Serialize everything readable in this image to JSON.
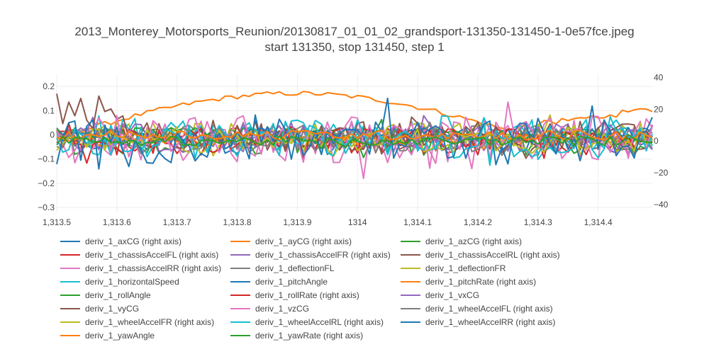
{
  "chart_data": {
    "type": "line",
    "title": "2013_Monterey_Motorsports_Reunion/20130817_01_01_02_grandsport-131350-131450-1-0e57fce.jpeg",
    "subtitle": "start 131350, stop 131450, step 1",
    "xlabel": "",
    "ylabel": "",
    "xlim": [
      1313.5,
      1314.49
    ],
    "ylim_left": [
      -0.32,
      0.25
    ],
    "ylim_right": [
      -45,
      42
    ],
    "x_ticks": [
      "1,313.5",
      "1,313.6",
      "1,313.7",
      "1,313.8",
      "1,313.9",
      "1314",
      "1,314.1",
      "1,314.2",
      "1,314.3",
      "1,314.4"
    ],
    "x_tick_values": [
      1313.5,
      1313.6,
      1313.7,
      1313.8,
      1313.9,
      1314.0,
      1314.1,
      1314.2,
      1314.3,
      1314.4
    ],
    "y_ticks_left": [
      "0.2",
      "0.1",
      "0",
      "−0.1",
      "−0.2",
      "−0.3"
    ],
    "y_tick_values_left": [
      0.2,
      0.1,
      0,
      -0.1,
      -0.2,
      -0.3
    ],
    "y_ticks_right": [
      "40",
      "20",
      "0",
      "−20",
      "−40"
    ],
    "y_tick_values_right": [
      40,
      20,
      0,
      -20,
      -40
    ],
    "grid": true,
    "legend_position": "bottom",
    "series": [
      {
        "name": "deriv_1_axCG (right axis)",
        "color": "#1f77b4",
        "axis": "right",
        "amp": 8
      },
      {
        "name": "deriv_1_ayCG (right axis)",
        "color": "#ff7f0e",
        "axis": "right",
        "amp": 1,
        "trend": "arch"
      },
      {
        "name": "deriv_1_azCG (right axis)",
        "color": "#2ca02c",
        "axis": "right",
        "amp": 9
      },
      {
        "name": "deriv_1_chassisAccelFL (right axis)",
        "color": "#d62728",
        "axis": "right",
        "amp": 9
      },
      {
        "name": "deriv_1_chassisAccelFR (right axis)",
        "color": "#9467bd",
        "axis": "right",
        "amp": 7
      },
      {
        "name": "deriv_1_chassisAccelRL (right axis)",
        "color": "#8c564b",
        "axis": "right",
        "amp": 6
      },
      {
        "name": "deriv_1_chassisAccelRR (right axis)",
        "color": "#e377c2",
        "axis": "right",
        "amp": 14
      },
      {
        "name": "deriv_1_deflectionFL",
        "color": "#7f7f7f",
        "axis": "left",
        "amp": 0.04
      },
      {
        "name": "deriv_1_deflectionFR",
        "color": "#bcbd22",
        "axis": "left",
        "amp": 0.05
      },
      {
        "name": "deriv_1_horizontalSpeed",
        "color": "#17becf",
        "axis": "left",
        "amp": 0.08
      },
      {
        "name": "deriv_1_pitchAngle",
        "color": "#1f77b4",
        "axis": "left",
        "amp": 0.03
      },
      {
        "name": "deriv_1_pitchRate (right axis)",
        "color": "#ff7f0e",
        "axis": "right",
        "amp": 3
      },
      {
        "name": "deriv_1_rollAngle",
        "color": "#2ca02c",
        "axis": "left",
        "amp": 0.03
      },
      {
        "name": "deriv_1_rollRate (right axis)",
        "color": "#d62728",
        "axis": "right",
        "amp": 8
      },
      {
        "name": "deriv_1_vxCG",
        "color": "#9467bd",
        "axis": "left",
        "amp": 0.05
      },
      {
        "name": "deriv_1_vyCG",
        "color": "#8c564b",
        "axis": "left",
        "amp": 0.06,
        "lead": 0.17
      },
      {
        "name": "deriv_1_vzCG",
        "color": "#e377c2",
        "axis": "left",
        "amp": 0.08
      },
      {
        "name": "deriv_1_wheelAccelFL (right axis)",
        "color": "#7f7f7f",
        "axis": "right",
        "amp": 8
      },
      {
        "name": "deriv_1_wheelAccelFR (right axis)",
        "color": "#bcbd22",
        "axis": "right",
        "amp": 8
      },
      {
        "name": "deriv_1_wheelAccelRL (right axis)",
        "color": "#17becf",
        "axis": "right",
        "amp": 10
      },
      {
        "name": "deriv_1_wheelAccelRR (right axis)",
        "color": "#1f77b4",
        "axis": "right",
        "amp": 15
      },
      {
        "name": "deriv_1_yawAngle",
        "color": "#ff7f0e",
        "axis": "left",
        "amp": 0.02
      },
      {
        "name": "deriv_1_yawRate (right axis)",
        "color": "#2ca02c",
        "axis": "right",
        "amp": 3
      }
    ]
  }
}
